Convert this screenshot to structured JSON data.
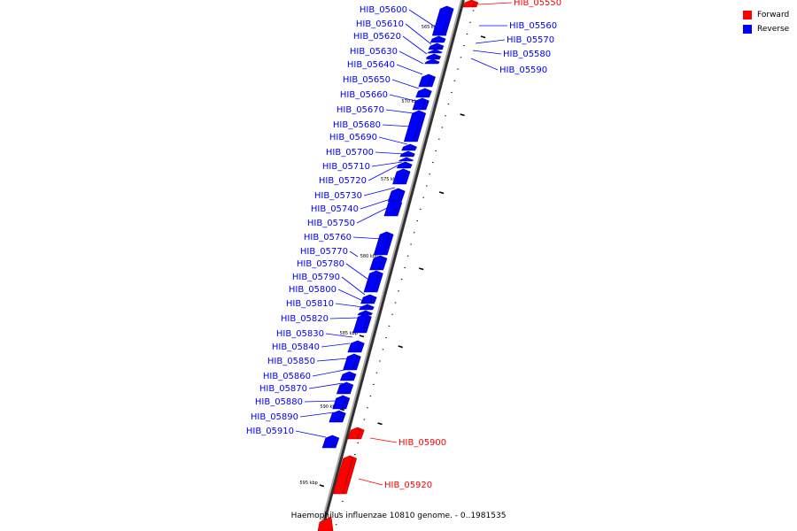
{
  "caption": "Haemophilus influenzae 10810 genome. - 0..1981535",
  "legend": {
    "forward": {
      "label": "Forward",
      "color": "#ff0000"
    },
    "reverse": {
      "label": "Reverse",
      "color": "#0000ff"
    }
  },
  "backbone_color": "#808080",
  "kbp_ticks": [
    "565 kbp",
    "570 kbp",
    "575 kbp",
    "580 kbp",
    "585 kbp",
    "590 kbp",
    "595 kbp"
  ],
  "genes": [
    {
      "name": "HIB_05550",
      "strand": "forward"
    },
    {
      "name": "HIB_05560",
      "strand": "reverse"
    },
    {
      "name": "HIB_05570",
      "strand": "reverse"
    },
    {
      "name": "HIB_05580",
      "strand": "reverse"
    },
    {
      "name": "HIB_05590",
      "strand": "reverse"
    },
    {
      "name": "HIB_05600",
      "strand": "reverse"
    },
    {
      "name": "HIB_05610",
      "strand": "reverse"
    },
    {
      "name": "HIB_05620",
      "strand": "reverse"
    },
    {
      "name": "HIB_05630",
      "strand": "reverse"
    },
    {
      "name": "HIB_05640",
      "strand": "reverse"
    },
    {
      "name": "HIB_05650",
      "strand": "reverse"
    },
    {
      "name": "HIB_05660",
      "strand": "reverse"
    },
    {
      "name": "HIB_05670",
      "strand": "reverse"
    },
    {
      "name": "HIB_05680",
      "strand": "reverse"
    },
    {
      "name": "HIB_05690",
      "strand": "reverse"
    },
    {
      "name": "HIB_05700",
      "strand": "reverse"
    },
    {
      "name": "HIB_05710",
      "strand": "reverse"
    },
    {
      "name": "HIB_05720",
      "strand": "reverse"
    },
    {
      "name": "HIB_05730",
      "strand": "reverse"
    },
    {
      "name": "HIB_05740",
      "strand": "reverse"
    },
    {
      "name": "HIB_05750",
      "strand": "reverse"
    },
    {
      "name": "HIB_05760",
      "strand": "reverse"
    },
    {
      "name": "HIB_05770",
      "strand": "reverse"
    },
    {
      "name": "HIB_05780",
      "strand": "reverse"
    },
    {
      "name": "HIB_05790",
      "strand": "reverse"
    },
    {
      "name": "HIB_05800",
      "strand": "reverse"
    },
    {
      "name": "HIB_05810",
      "strand": "reverse"
    },
    {
      "name": "HIB_05820",
      "strand": "reverse"
    },
    {
      "name": "HIB_05830",
      "strand": "reverse"
    },
    {
      "name": "HIB_05840",
      "strand": "reverse"
    },
    {
      "name": "HIB_05850",
      "strand": "reverse"
    },
    {
      "name": "HIB_05860",
      "strand": "reverse"
    },
    {
      "name": "HIB_05870",
      "strand": "reverse"
    },
    {
      "name": "HIB_05880",
      "strand": "reverse"
    },
    {
      "name": "HIB_05890",
      "strand": "reverse"
    },
    {
      "name": "HIB_05900",
      "strand": "forward"
    },
    {
      "name": "HIB_05910",
      "strand": "reverse"
    },
    {
      "name": "HIB_05920",
      "strand": "forward"
    }
  ]
}
